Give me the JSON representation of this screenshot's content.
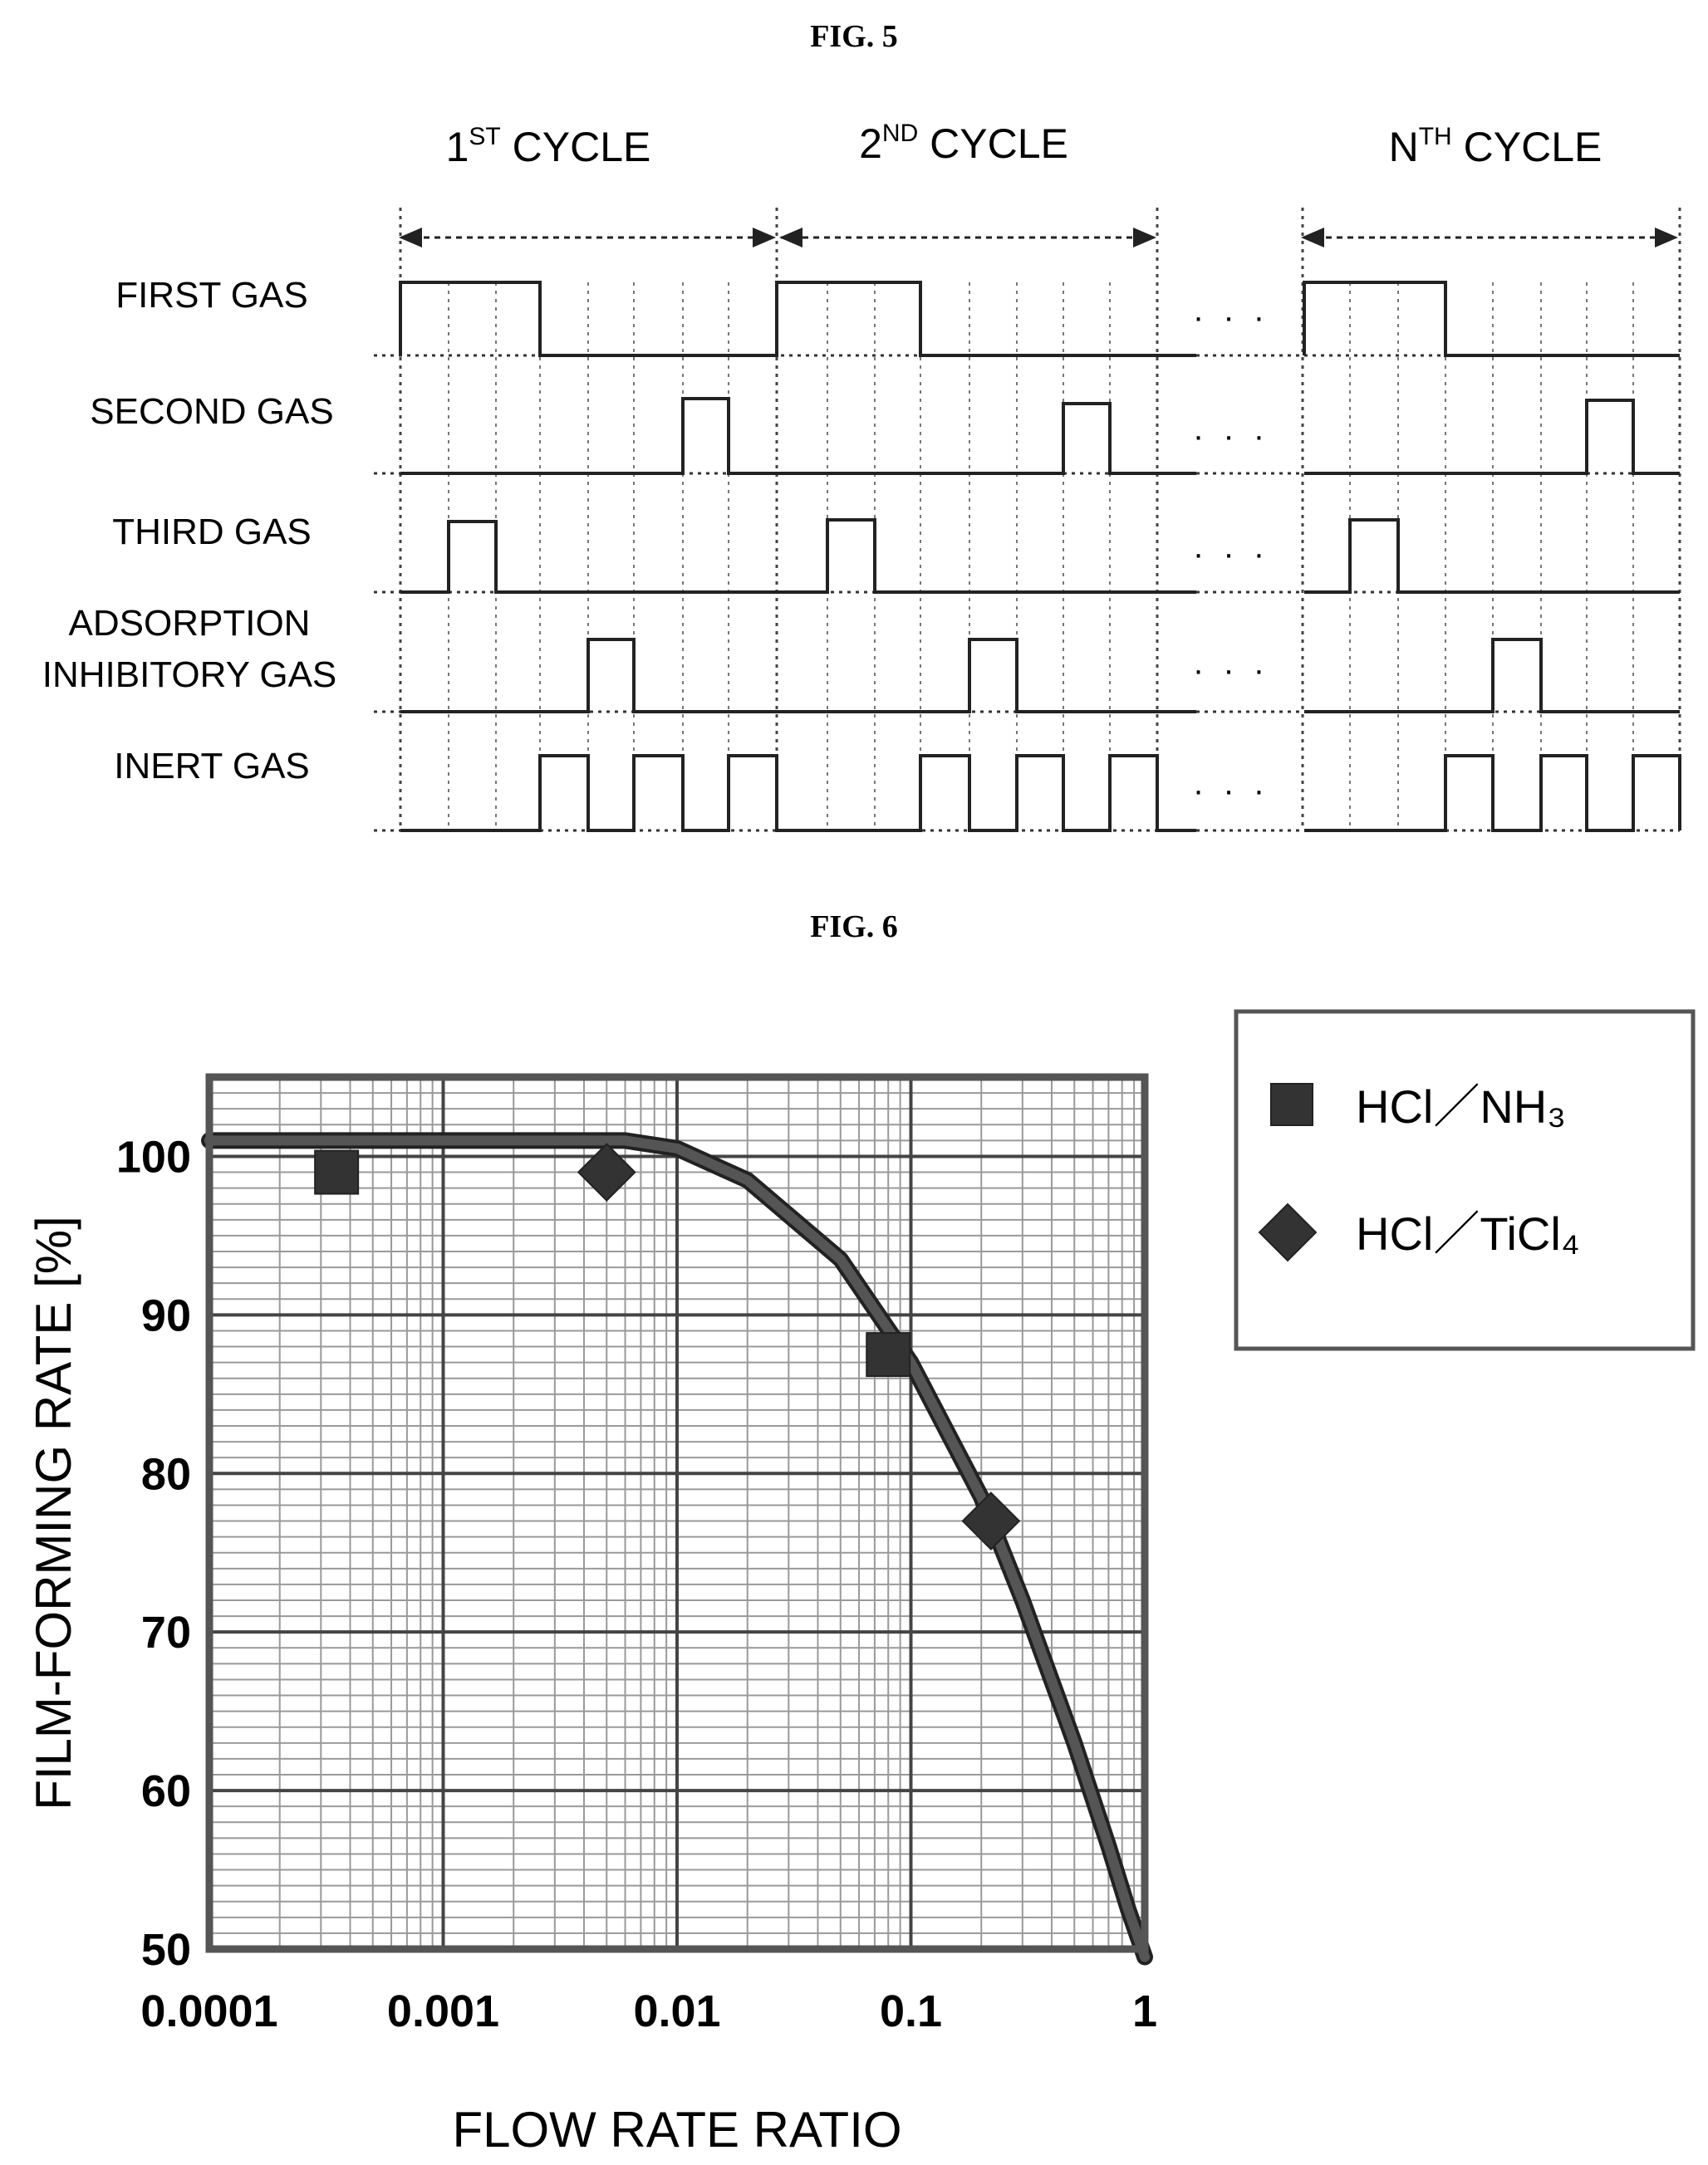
{
  "fig5": {
    "title": "FIG. 5",
    "cycles": [
      {
        "num": "1",
        "sup": "ST",
        "text": " CYCLE"
      },
      {
        "num": "2",
        "sup": "ND",
        "text": " CYCLE"
      },
      {
        "num": "N",
        "sup": "TH",
        "text": " CYCLE"
      }
    ],
    "rows": [
      {
        "lines": [
          "FIRST GAS"
        ]
      },
      {
        "lines": [
          "SECOND GAS"
        ]
      },
      {
        "lines": [
          "THIRD GAS"
        ]
      },
      {
        "lines": [
          "ADSORPTION",
          "INHIBITORY GAS"
        ]
      },
      {
        "lines": [
          "INERT GAS"
        ]
      }
    ],
    "ellipsis": "· · ·"
  },
  "fig6": {
    "title": "FIG. 6",
    "chart_data": {
      "type": "scatter",
      "xscale": "log",
      "xlim": [
        0.0001,
        1
      ],
      "ylim": [
        50,
        105
      ],
      "xticks": [
        {
          "value": 0.0001,
          "label": "0.0001"
        },
        {
          "value": 0.001,
          "label": "0.001"
        },
        {
          "value": 0.01,
          "label": "0.01"
        },
        {
          "value": 0.1,
          "label": "0.1"
        },
        {
          "value": 1,
          "label": "1"
        }
      ],
      "yticks": [
        {
          "value": 50,
          "label": "50"
        },
        {
          "value": 60,
          "label": "60"
        },
        {
          "value": 70,
          "label": "70"
        },
        {
          "value": 80,
          "label": "80"
        },
        {
          "value": 90,
          "label": "90"
        },
        {
          "value": 100,
          "label": "100"
        }
      ],
      "xlabel": "FLOW RATE RATIO",
      "ylabel": "FILM-FORMING RATE [%]",
      "grid": true,
      "legend_position": "top-right outside",
      "series": [
        {
          "name": "HCl／NH₃",
          "marker": "square",
          "color": "#333333",
          "points": [
            {
              "x": 0.00035,
              "y": 99
            },
            {
              "x": 0.08,
              "y": 87.5
            }
          ]
        },
        {
          "name": "HCl／TiCl₄",
          "marker": "diamond",
          "color": "#333333",
          "points": [
            {
              "x": 0.005,
              "y": 99
            },
            {
              "x": 0.22,
              "y": 77
            }
          ]
        }
      ],
      "fit_curve": {
        "color": "#555555",
        "points": [
          {
            "x": 0.0001,
            "y": 101
          },
          {
            "x": 0.001,
            "y": 101
          },
          {
            "x": 0.006,
            "y": 101
          },
          {
            "x": 0.01,
            "y": 100.5
          },
          {
            "x": 0.02,
            "y": 98.5
          },
          {
            "x": 0.05,
            "y": 93.5
          },
          {
            "x": 0.1,
            "y": 87
          },
          {
            "x": 0.2,
            "y": 78.5
          },
          {
            "x": 0.3,
            "y": 72
          },
          {
            "x": 0.5,
            "y": 63
          },
          {
            "x": 0.7,
            "y": 56.5
          },
          {
            "x": 0.85,
            "y": 52.5
          },
          {
            "x": 1,
            "y": 49.5
          }
        ]
      }
    }
  }
}
